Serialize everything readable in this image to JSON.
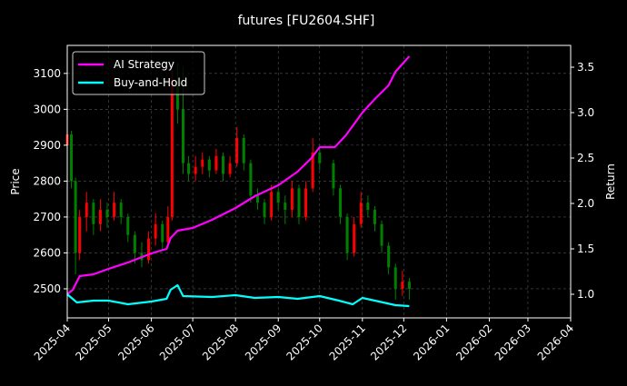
{
  "chart_data": {
    "type": "candlestick+line",
    "title": "futures [FU2604.SHF]",
    "xlabel": "",
    "ylabel_left": "Price",
    "ylabel_right": "Return",
    "xlim": [
      "2025-04-01",
      "2026-04-01"
    ],
    "ylim_left": [
      2419,
      3178
    ],
    "ylim_right": [
      0.74,
      3.74
    ],
    "x_ticks": [
      "2025-04",
      "2025-05",
      "2025-06",
      "2025-07",
      "2025-08",
      "2025-09",
      "2025-10",
      "2025-11",
      "2025-12",
      "2026-01",
      "2026-02",
      "2026-03",
      "2026-04"
    ],
    "y_ticks_left": [
      "2500",
      "2600",
      "2700",
      "2800",
      "2900",
      "3000",
      "3100"
    ],
    "y_ticks_right": [
      "1.0",
      "1.5",
      "2.0",
      "2.5",
      "3.0",
      "3.5"
    ],
    "grid": true,
    "legend_position": "top-left",
    "colors": {
      "up": "#ff0000",
      "down": "#008000",
      "ai": "#ff00ff",
      "bh": "#00ffff",
      "grid": "#555555",
      "background": "#000000"
    },
    "candles_columns": [
      "date",
      "open",
      "high",
      "low",
      "close"
    ],
    "candles": [
      [
        "2025-04-01",
        2900,
        2960,
        2880,
        2930
      ],
      [
        "2025-04-04",
        2930,
        2940,
        2780,
        2800
      ],
      [
        "2025-04-07",
        2800,
        2810,
        2540,
        2600
      ],
      [
        "2025-04-10",
        2600,
        2720,
        2580,
        2700
      ],
      [
        "2025-04-15",
        2700,
        2770,
        2660,
        2740
      ],
      [
        "2025-04-20",
        2740,
        2750,
        2650,
        2680
      ],
      [
        "2025-04-25",
        2680,
        2750,
        2660,
        2720
      ],
      [
        "2025-04-30",
        2720,
        2740,
        2670,
        2700
      ],
      [
        "2025-05-05",
        2700,
        2770,
        2690,
        2740
      ],
      [
        "2025-05-10",
        2740,
        2750,
        2680,
        2700
      ],
      [
        "2025-05-15",
        2700,
        2710,
        2630,
        2650
      ],
      [
        "2025-05-20",
        2650,
        2660,
        2570,
        2600
      ],
      [
        "2025-05-25",
        2600,
        2630,
        2560,
        2580
      ],
      [
        "2025-05-30",
        2580,
        2660,
        2570,
        2640
      ],
      [
        "2025-06-04",
        2640,
        2710,
        2620,
        2680
      ],
      [
        "2025-06-09",
        2680,
        2690,
        2610,
        2630
      ],
      [
        "2025-06-13",
        2630,
        2730,
        2620,
        2700
      ],
      [
        "2025-06-16",
        2700,
        3110,
        2690,
        3080
      ],
      [
        "2025-06-20",
        3080,
        3130,
        2960,
        3000
      ],
      [
        "2025-06-24",
        3000,
        3120,
        2820,
        2850
      ],
      [
        "2025-06-28",
        2850,
        2870,
        2800,
        2820
      ],
      [
        "2025-07-03",
        2820,
        2870,
        2800,
        2840
      ],
      [
        "2025-07-08",
        2840,
        2880,
        2820,
        2860
      ],
      [
        "2025-07-13",
        2860,
        2870,
        2810,
        2830
      ],
      [
        "2025-07-18",
        2830,
        2890,
        2820,
        2870
      ],
      [
        "2025-07-23",
        2870,
        2880,
        2800,
        2820
      ],
      [
        "2025-07-28",
        2820,
        2870,
        2810,
        2850
      ],
      [
        "2025-08-02",
        2850,
        2950,
        2840,
        2920
      ],
      [
        "2025-08-07",
        2920,
        2930,
        2830,
        2850
      ],
      [
        "2025-08-12",
        2850,
        2860,
        2740,
        2760
      ],
      [
        "2025-08-17",
        2760,
        2780,
        2720,
        2740
      ],
      [
        "2025-08-22",
        2740,
        2750,
        2680,
        2700
      ],
      [
        "2025-08-27",
        2700,
        2790,
        2690,
        2770
      ],
      [
        "2025-09-01",
        2770,
        2780,
        2720,
        2740
      ],
      [
        "2025-09-06",
        2740,
        2760,
        2680,
        2720
      ],
      [
        "2025-09-11",
        2720,
        2800,
        2700,
        2780
      ],
      [
        "2025-09-16",
        2780,
        2790,
        2680,
        2700
      ],
      [
        "2025-09-21",
        2700,
        2800,
        2690,
        2780
      ],
      [
        "2025-09-26",
        2780,
        2920,
        2770,
        2880
      ],
      [
        "2025-10-01",
        2880,
        2890,
        2830,
        2850
      ],
      [
        "2025-10-11",
        2850,
        2860,
        2760,
        2780
      ],
      [
        "2025-10-16",
        2780,
        2790,
        2680,
        2700
      ],
      [
        "2025-10-21",
        2700,
        2710,
        2580,
        2600
      ],
      [
        "2025-10-26",
        2600,
        2700,
        2590,
        2680
      ],
      [
        "2025-10-31",
        2680,
        2770,
        2670,
        2740
      ],
      [
        "2025-11-05",
        2740,
        2760,
        2700,
        2720
      ],
      [
        "2025-11-10",
        2720,
        2730,
        2660,
        2680
      ],
      [
        "2025-11-15",
        2680,
        2690,
        2600,
        2620
      ],
      [
        "2025-11-20",
        2620,
        2630,
        2540,
        2560
      ],
      [
        "2025-11-25",
        2560,
        2570,
        2470,
        2500
      ],
      [
        "2025-11-30",
        2500,
        2550,
        2480,
        2520
      ],
      [
        "2025-12-05",
        2520,
        2530,
        2470,
        2500
      ]
    ],
    "series": [
      {
        "name": "AI Strategy",
        "axis": "right",
        "x": [
          "2025-04-01",
          "2025-04-05",
          "2025-04-10",
          "2025-04-20",
          "2025-05-01",
          "2025-05-15",
          "2025-06-01",
          "2025-06-12",
          "2025-06-15",
          "2025-06-20",
          "2025-07-01",
          "2025-07-15",
          "2025-08-01",
          "2025-08-15",
          "2025-09-01",
          "2025-09-15",
          "2025-09-25",
          "2025-10-01",
          "2025-10-12",
          "2025-10-20",
          "2025-11-01",
          "2025-11-10",
          "2025-11-20",
          "2025-11-25",
          "2025-12-05"
        ],
        "values": [
          1.0,
          1.05,
          1.2,
          1.22,
          1.28,
          1.35,
          1.45,
          1.5,
          1.62,
          1.7,
          1.73,
          1.82,
          1.95,
          2.08,
          2.2,
          2.35,
          2.5,
          2.62,
          2.62,
          2.75,
          3.0,
          3.15,
          3.3,
          3.45,
          3.62
        ]
      },
      {
        "name": "Buy-and-Hold",
        "axis": "right",
        "x": [
          "2025-04-01",
          "2025-04-08",
          "2025-04-20",
          "2025-05-01",
          "2025-05-15",
          "2025-06-01",
          "2025-06-12",
          "2025-06-15",
          "2025-06-20",
          "2025-06-24",
          "2025-07-15",
          "2025-08-01",
          "2025-08-15",
          "2025-09-01",
          "2025-09-15",
          "2025-10-01",
          "2025-10-15",
          "2025-10-25",
          "2025-11-01",
          "2025-11-10",
          "2025-11-25",
          "2025-12-05"
        ],
        "values": [
          1.0,
          0.91,
          0.93,
          0.93,
          0.89,
          0.92,
          0.95,
          1.05,
          1.1,
          0.98,
          0.97,
          0.99,
          0.96,
          0.97,
          0.95,
          0.98,
          0.93,
          0.89,
          0.96,
          0.93,
          0.88,
          0.87
        ]
      }
    ]
  }
}
